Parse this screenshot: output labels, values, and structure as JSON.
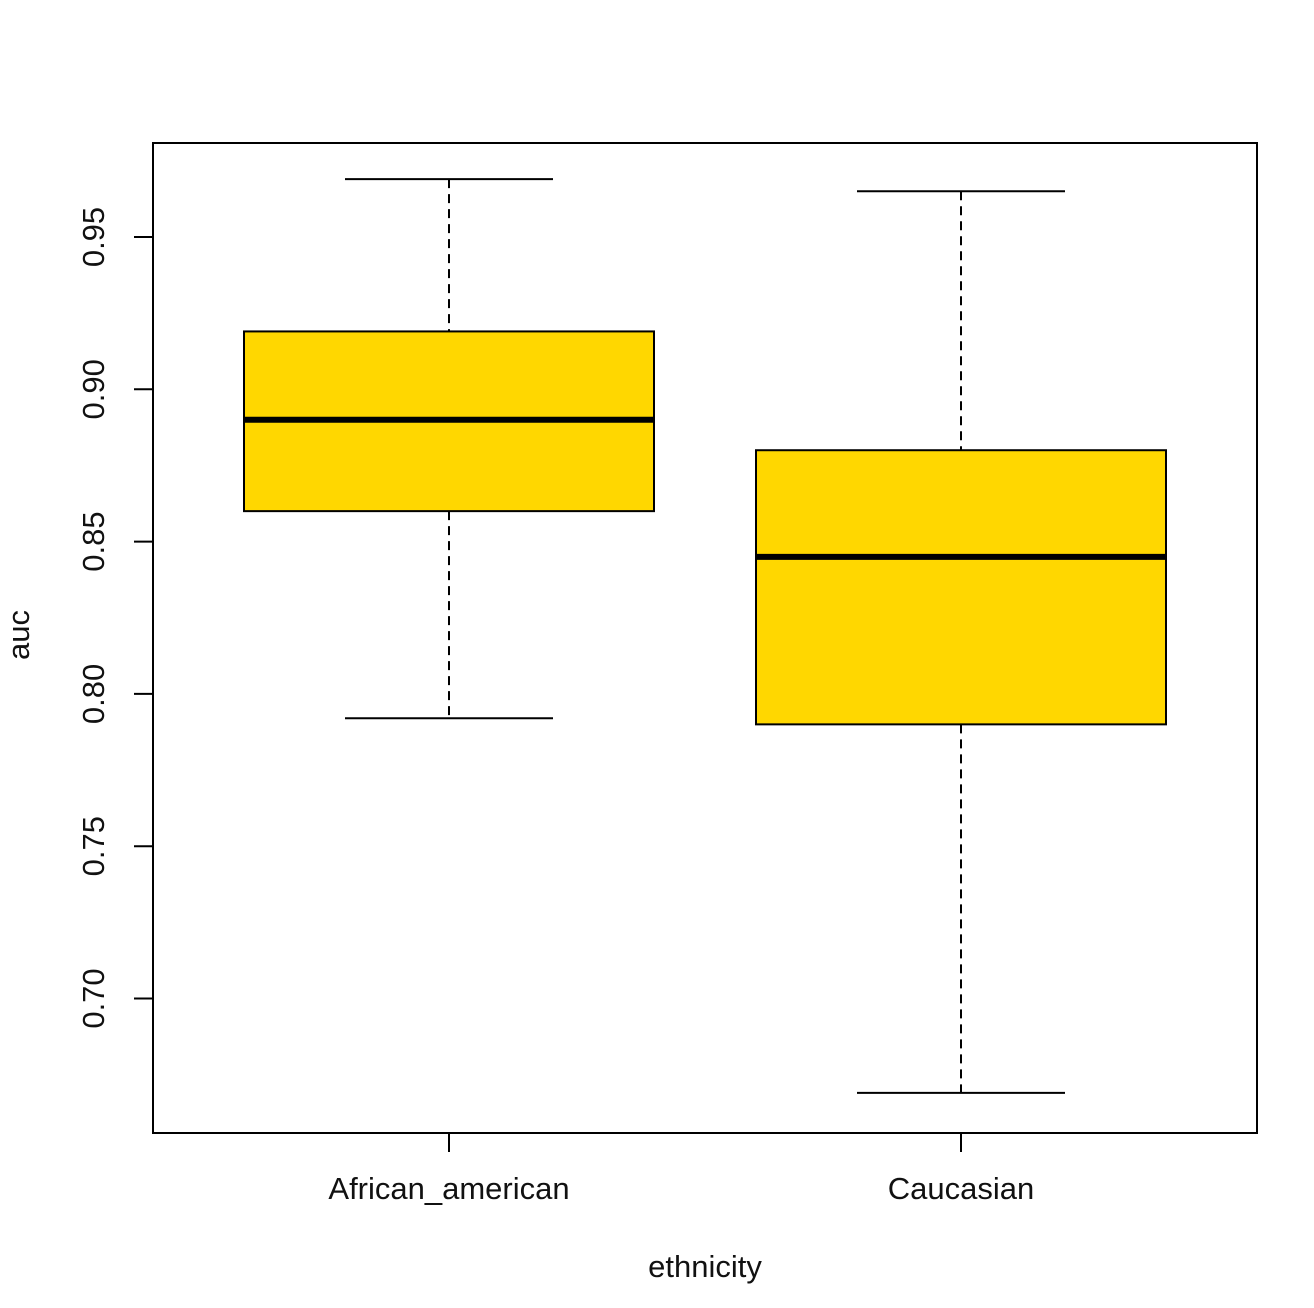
{
  "chart_data": {
    "type": "box",
    "xlabel": "ethnicity",
    "ylabel": "auc",
    "ylim": [
      0.66,
      0.985
    ],
    "yticks": [
      0.7,
      0.75,
      0.8,
      0.85,
      0.9,
      0.95
    ],
    "ytick_labels": [
      "0.70",
      "0.75",
      "0.80",
      "0.85",
      "0.90",
      "0.95"
    ],
    "categories": [
      "African_american",
      "Caucasian"
    ],
    "boxes": [
      {
        "category": "African_american",
        "whisker_low": 0.792,
        "q1": 0.86,
        "median": 0.89,
        "q3": 0.919,
        "whisker_high": 0.969
      },
      {
        "category": "Caucasian",
        "whisker_low": 0.669,
        "q1": 0.79,
        "median": 0.845,
        "q3": 0.88,
        "whisker_high": 0.965
      }
    ],
    "box_fill": "#FFD700",
    "grid": false,
    "legend": "none"
  }
}
